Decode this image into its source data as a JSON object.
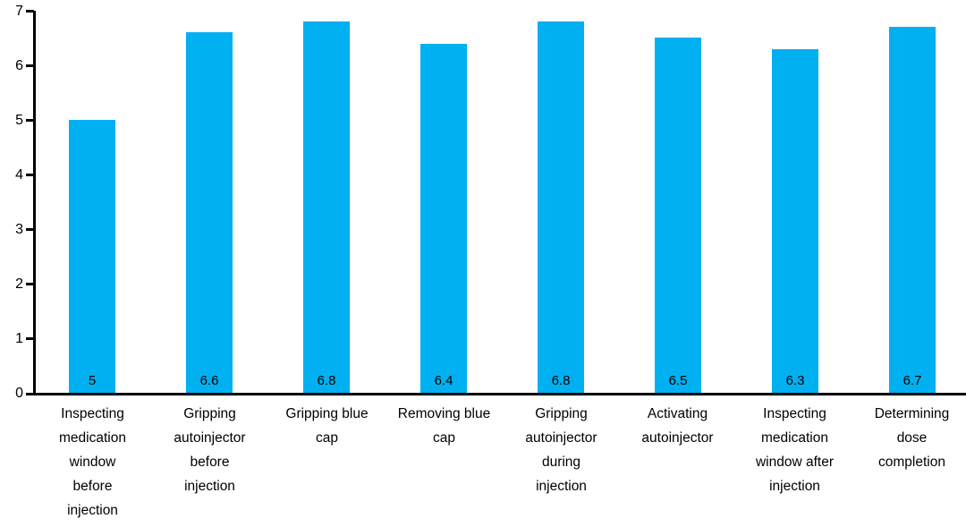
{
  "chart_data": {
    "type": "bar",
    "categories": [
      "Inspecting\nmedication\nwindow\nbefore\ninjection",
      "Gripping\nautoinjector\nbefore\ninjection",
      "Gripping blue\ncap",
      "Removing blue\ncap",
      "Gripping\nautoinjector\nduring\ninjection",
      "Activating\nautoinjector",
      "Inspecting\nmedication\nwindow after\ninjection",
      "Determining\ndose\ncompletion"
    ],
    "values": [
      5,
      6.6,
      6.8,
      6.4,
      6.8,
      6.5,
      6.3,
      6.7
    ],
    "value_labels": [
      "5",
      "6.6",
      "6.8",
      "6.4",
      "6.8",
      "6.5",
      "6.3",
      "6.7"
    ],
    "yticks": [
      "0",
      "1",
      "2",
      "3",
      "4",
      "5",
      "6",
      "7"
    ],
    "ylim": [
      0,
      7
    ],
    "grid": false,
    "legend_position": "none",
    "bar_color": "#00B0F0",
    "axis_color": "#000000",
    "text_color": "#000000"
  }
}
